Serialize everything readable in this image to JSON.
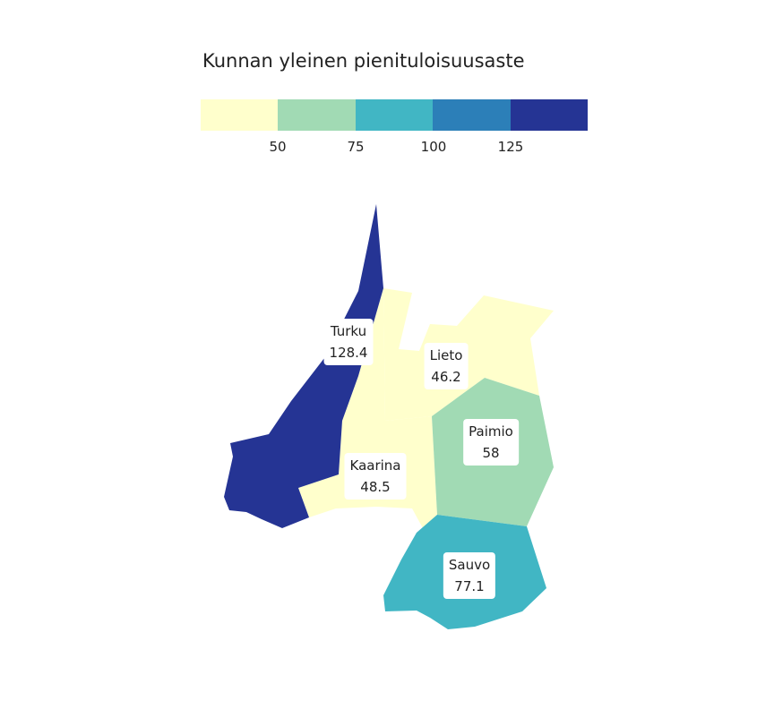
{
  "legend": {
    "title": "Kunnan yleinen pienituloisuusaste",
    "colors": [
      "#ffffcc",
      "#a1dab4",
      "#41b6c4",
      "#2c7fb8",
      "#253494"
    ],
    "ticks": [
      "50",
      "75",
      "100",
      "125"
    ]
  },
  "municipalities": [
    {
      "name": "Turku",
      "value": "128.4",
      "color": "#253494"
    },
    {
      "name": "Lieto",
      "value": "46.2",
      "color": "#ffffcc"
    },
    {
      "name": "Kaarina",
      "value": "48.5",
      "color": "#ffffcc"
    },
    {
      "name": "Paimio",
      "value": "58",
      "color": "#a1dab4"
    },
    {
      "name": "Sauvo",
      "value": "77.1",
      "color": "#41b6c4"
    }
  ]
}
